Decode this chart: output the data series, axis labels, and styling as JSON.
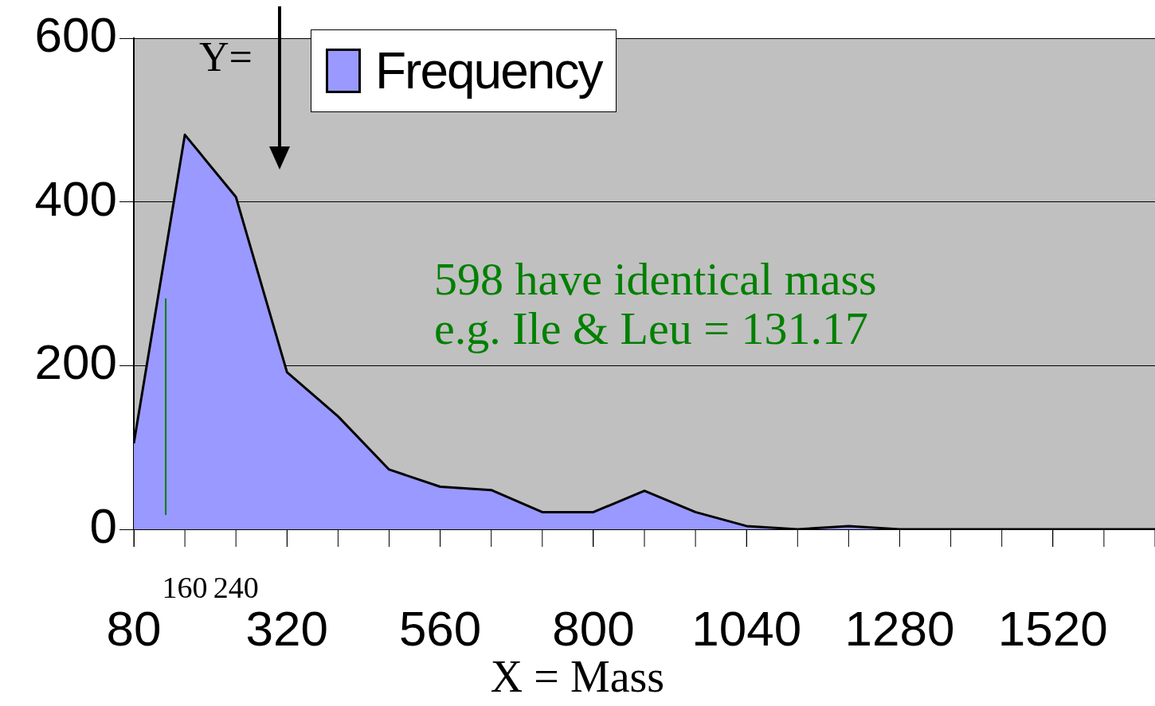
{
  "chart_data": {
    "type": "area",
    "ylabel": "Y=",
    "xlabel": "X = Mass",
    "x": [
      80,
      160,
      240,
      320,
      400,
      480,
      560,
      640,
      720,
      800,
      880,
      960,
      1040,
      1120,
      1200,
      1280,
      1360,
      1440,
      1520,
      1600,
      1680
    ],
    "series": [
      {
        "name": "Frequency",
        "color": "#9999ff",
        "values": [
          105,
          482,
          406,
          192,
          138,
          73,
          52,
          48,
          21,
          21,
          47,
          21,
          4,
          0,
          4,
          0,
          0,
          0,
          0,
          0,
          0
        ]
      }
    ],
    "xlim": [
      80,
      1680
    ],
    "xticks": [
      80,
      320,
      560,
      800,
      1040,
      1280,
      1520
    ],
    "ylim": [
      0,
      600
    ],
    "yticks": [
      0,
      200,
      400,
      600
    ],
    "grid": "y",
    "legend": "top",
    "marker": "none",
    "ref_lines": [
      {
        "axis": "x",
        "value": 130,
        "color": "#008000"
      }
    ],
    "annotations": [
      "598 have identical mass",
      "e.g. Ile & Leu = 131.17",
      {
        "text": "160",
        "x": 160,
        "y": 0
      },
      {
        "text": "240",
        "x": 240,
        "y": 0
      }
    ]
  }
}
